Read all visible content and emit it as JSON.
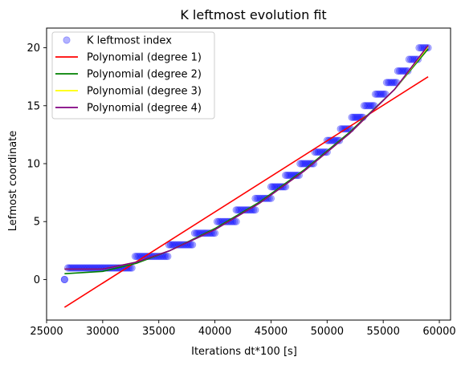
{
  "chart_data": {
    "type": "scatter",
    "title": "K leftmost evolution fit",
    "xlabel": "Iterations dt*100 [s]",
    "ylabel": "Lefmost coordinate",
    "xlim": [
      25000,
      61000
    ],
    "ylim": [
      -3.5,
      21.7
    ],
    "x_ticks": [
      25000,
      30000,
      35000,
      40000,
      45000,
      50000,
      55000,
      60000
    ],
    "x_tick_labels": [
      "25000",
      "30000",
      "35000",
      "40000",
      "45000",
      "50000",
      "55000",
      "60000"
    ],
    "y_ticks": [
      0,
      5,
      10,
      15,
      20
    ],
    "y_tick_labels": [
      "0",
      "5",
      "10",
      "15",
      "20"
    ],
    "grid": false,
    "legend_position": "top-left",
    "scatter": {
      "name": "K leftmost index",
      "color": "#0000ff",
      "opacity": 0.3,
      "steps": [
        {
          "y": 0,
          "x_start": 26600,
          "x_end": 26600
        },
        {
          "y": 1,
          "x_start": 26900,
          "x_end": 32600
        },
        {
          "y": 2,
          "x_start": 32900,
          "x_end": 35800
        },
        {
          "y": 3,
          "x_start": 35900,
          "x_end": 38000
        },
        {
          "y": 4,
          "x_start": 38200,
          "x_end": 40000
        },
        {
          "y": 5,
          "x_start": 40200,
          "x_end": 41900
        },
        {
          "y": 6,
          "x_start": 41900,
          "x_end": 43600
        },
        {
          "y": 7,
          "x_start": 43600,
          "x_end": 45000
        },
        {
          "y": 8,
          "x_start": 45000,
          "x_end": 46300
        },
        {
          "y": 9,
          "x_start": 46300,
          "x_end": 47500
        },
        {
          "y": 10,
          "x_start": 47600,
          "x_end": 48800
        },
        {
          "y": 11,
          "x_start": 48900,
          "x_end": 50000
        },
        {
          "y": 12,
          "x_start": 50000,
          "x_end": 51100
        },
        {
          "y": 13,
          "x_start": 51200,
          "x_end": 52100
        },
        {
          "y": 14,
          "x_start": 52200,
          "x_end": 53200
        },
        {
          "y": 15,
          "x_start": 53300,
          "x_end": 54200
        },
        {
          "y": 16,
          "x_start": 54300,
          "x_end": 55200
        },
        {
          "y": 17,
          "x_start": 55300,
          "x_end": 56200
        },
        {
          "y": 18,
          "x_start": 56300,
          "x_end": 57200
        },
        {
          "y": 19,
          "x_start": 57300,
          "x_end": 58100
        },
        {
          "y": 20,
          "x_start": 58200,
          "x_end": 59000
        }
      ]
    },
    "series": [
      {
        "name": "Polynomial (degree 1)",
        "color": "#ff0000",
        "x": [
          26600,
          59000
        ],
        "y": [
          -2.4,
          17.5
        ]
      },
      {
        "name": "Polynomial (degree 2)",
        "color": "#008000",
        "x": [
          26600,
          30000,
          33000,
          36000,
          40000,
          44000,
          48000,
          52000,
          56000,
          59000
        ],
        "y": [
          0.5,
          0.7,
          1.4,
          2.5,
          4.4,
          6.7,
          9.5,
          12.7,
          16.4,
          19.9
        ]
      },
      {
        "name": "Polynomial (degree 3)",
        "color": "#ffff00",
        "x": [
          26600,
          30000,
          33000,
          36000,
          40000,
          44000,
          48000,
          52000,
          56000,
          59000
        ],
        "y": [
          0.9,
          0.9,
          1.5,
          2.5,
          4.3,
          6.6,
          9.4,
          12.6,
          16.4,
          20.1
        ]
      },
      {
        "name": "Polynomial (degree 4)",
        "color": "#800080",
        "x": [
          26600,
          30000,
          33000,
          36000,
          40000,
          44000,
          48000,
          52000,
          56000,
          59000
        ],
        "y": [
          0.9,
          0.9,
          1.5,
          2.5,
          4.3,
          6.6,
          9.4,
          12.6,
          16.4,
          20.2
        ]
      }
    ]
  }
}
